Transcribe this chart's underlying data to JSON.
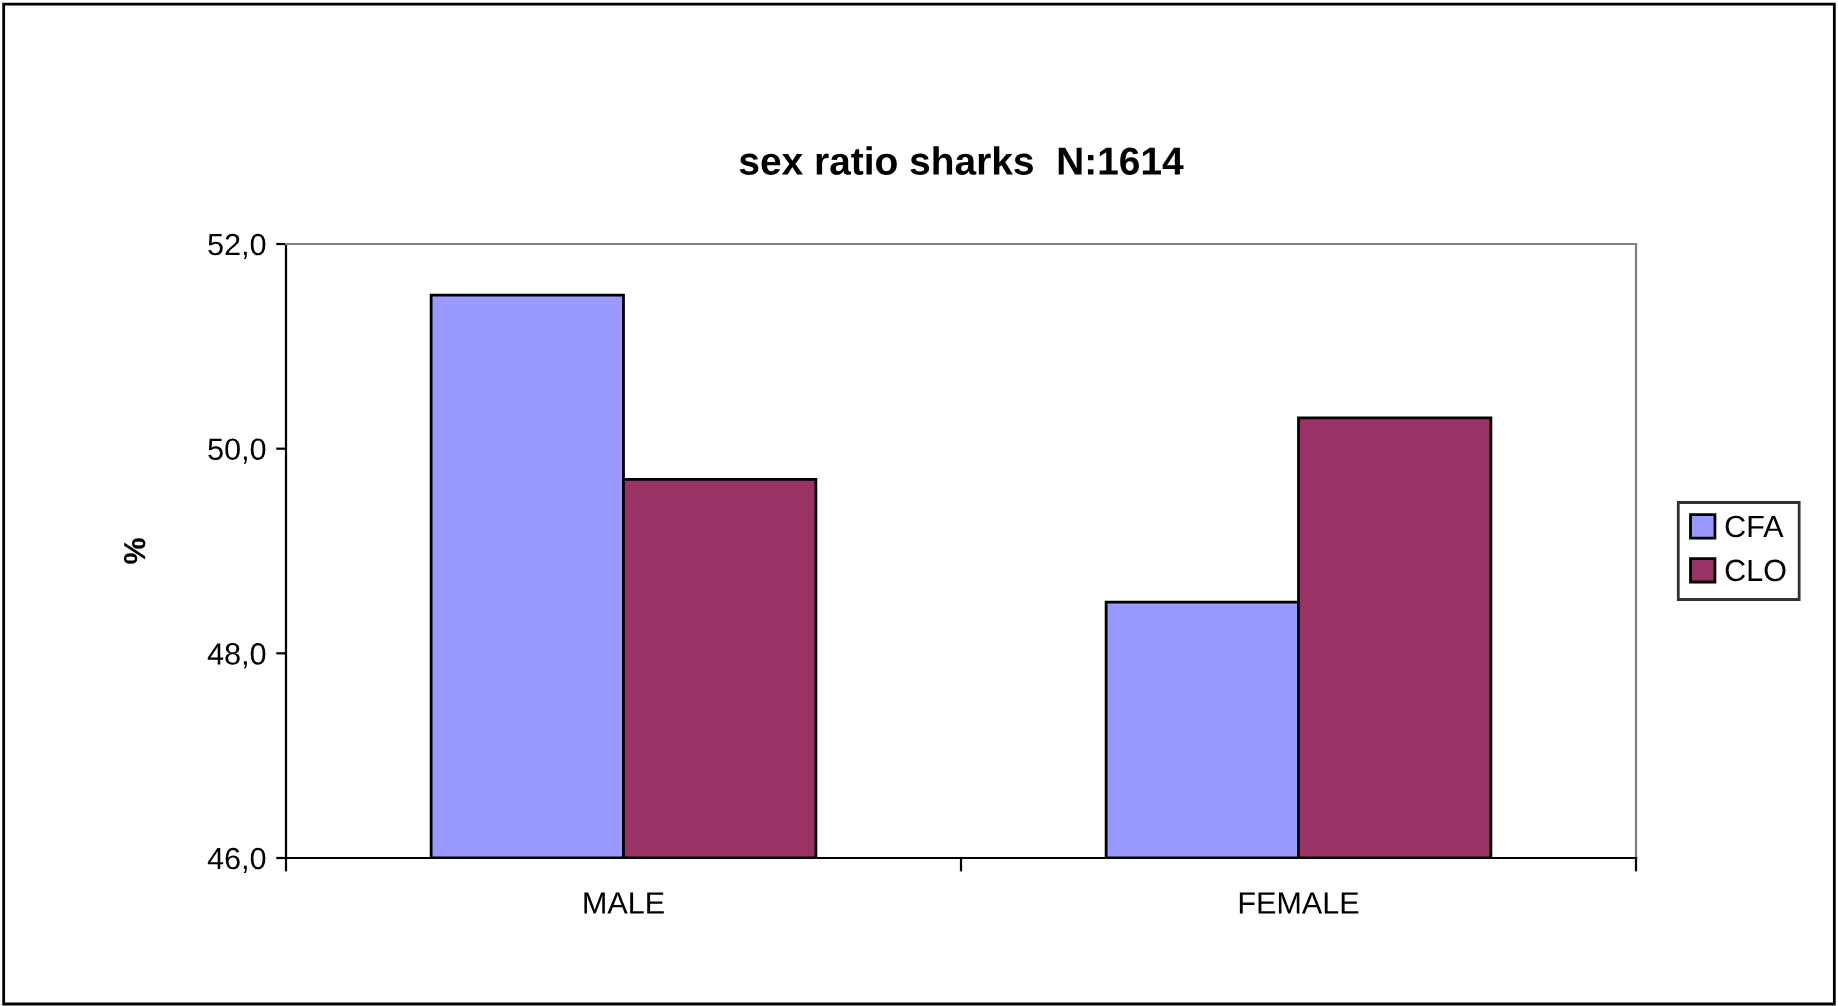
{
  "chart_data": {
    "type": "bar",
    "title": "sex ratio sharks  N:1614",
    "ylabel": "%",
    "categories": [
      "MALE",
      "FEMALE"
    ],
    "series": [
      {
        "name": "CFA",
        "color": "#9999ff",
        "values": [
          51.5,
          48.5
        ]
      },
      {
        "name": "CLO",
        "color": "#993366",
        "values": [
          49.7,
          50.3
        ]
      }
    ],
    "ylim": [
      46,
      52
    ],
    "yticks": [
      {
        "value": 46,
        "label": "46,0"
      },
      {
        "value": 48,
        "label": "48,0"
      },
      {
        "value": 50,
        "label": "50,0"
      },
      {
        "value": 52,
        "label": "52,0"
      }
    ],
    "grid": false,
    "legend": "right"
  }
}
